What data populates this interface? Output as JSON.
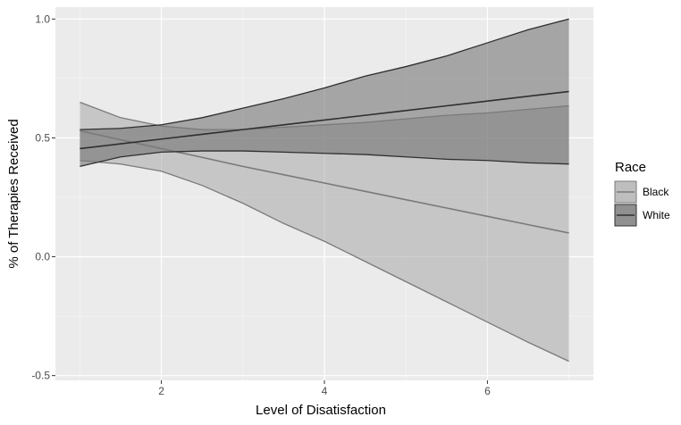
{
  "chart_data": {
    "type": "line",
    "title": "",
    "xlabel": "Level of Disatisfaction",
    "ylabel": "% of Therapies Received",
    "xlim": [
      0.7,
      7.3
    ],
    "ylim": [
      -0.52,
      1.05
    ],
    "x_ticks": [
      2,
      4,
      6
    ],
    "x_tick_labels": [
      "2",
      "4",
      "6"
    ],
    "y_ticks": [
      -0.5,
      0.0,
      0.5,
      1.0
    ],
    "y_tick_labels": [
      "-0.5",
      "0.0",
      "0.5",
      "1.0"
    ],
    "grid": true,
    "legend_position": "right",
    "legend_title": "Race",
    "series": [
      {
        "name": "Black",
        "color": "#7a7a7a",
        "fill": "#a8a8a8",
        "x": [
          1,
          1.5,
          2,
          2.5,
          3,
          3.5,
          4,
          4.5,
          5,
          5.5,
          6,
          6.5,
          7
        ],
        "y": [
          0.53,
          0.492,
          0.455,
          0.418,
          0.38,
          0.345,
          0.31,
          0.275,
          0.24,
          0.205,
          0.17,
          0.135,
          0.1
        ],
        "lower": [
          0.405,
          0.39,
          0.36,
          0.3,
          0.225,
          0.14,
          0.065,
          -0.02,
          -0.105,
          -0.19,
          -0.275,
          -0.36,
          -0.44
        ],
        "upper": [
          0.65,
          0.585,
          0.55,
          0.535,
          0.535,
          0.545,
          0.555,
          0.565,
          0.58,
          0.595,
          0.605,
          0.62,
          0.635
        ]
      },
      {
        "name": "White",
        "color": "#2f2f2f",
        "fill": "#6b6b6b",
        "x": [
          1,
          1.5,
          2,
          2.5,
          3,
          3.5,
          4,
          4.5,
          5,
          5.5,
          6,
          6.5,
          7
        ],
        "y": [
          0.455,
          0.475,
          0.495,
          0.515,
          0.535,
          0.555,
          0.575,
          0.595,
          0.615,
          0.635,
          0.655,
          0.675,
          0.695
        ],
        "lower": [
          0.38,
          0.42,
          0.44,
          0.445,
          0.445,
          0.44,
          0.435,
          0.43,
          0.42,
          0.41,
          0.405,
          0.395,
          0.39
        ],
        "upper": [
          0.535,
          0.54,
          0.555,
          0.585,
          0.625,
          0.665,
          0.71,
          0.76,
          0.8,
          0.845,
          0.9,
          0.955,
          1.0
        ]
      }
    ]
  }
}
